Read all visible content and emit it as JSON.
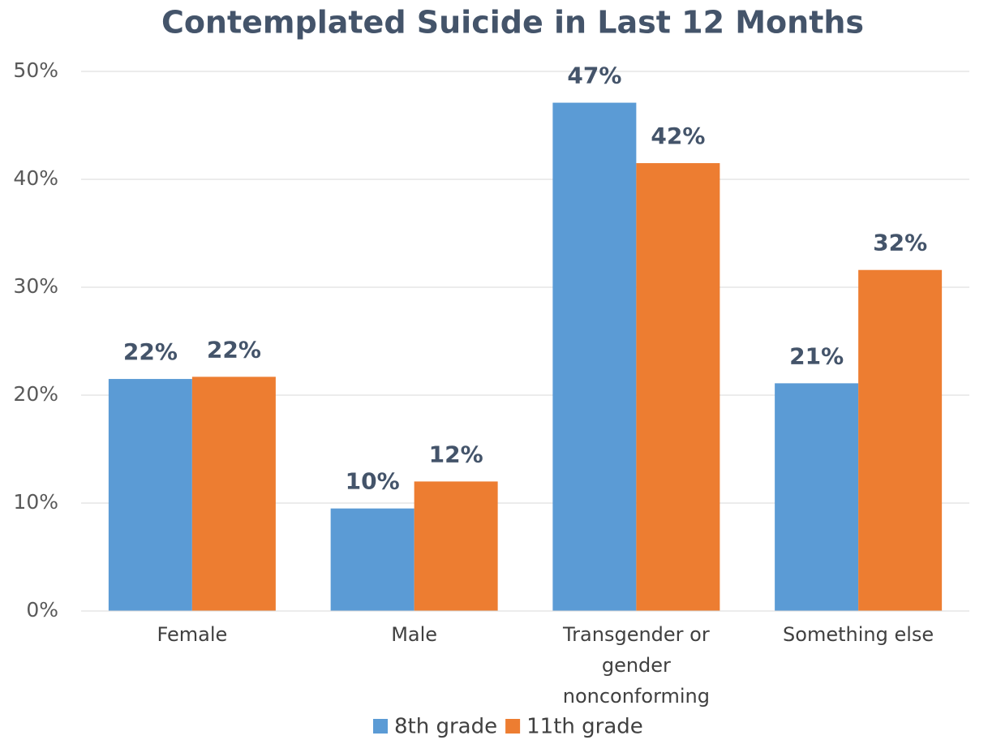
{
  "chart_data": {
    "type": "bar",
    "title": "Contemplated Suicide in Last 12 Months",
    "categories": [
      "Female",
      "Male",
      "Transgender or gender nonconforming",
      "Something else"
    ],
    "series": [
      {
        "name": "8th grade",
        "color": "#5b9bd5",
        "values": [
          21.5,
          9.5,
          47.1,
          21.1
        ],
        "value_labels": [
          "22%",
          "10%",
          "47%",
          "21%"
        ]
      },
      {
        "name": "11th grade",
        "color": "#ed7d31",
        "values": [
          21.7,
          12.0,
          41.5,
          31.6
        ],
        "value_labels": [
          "22%",
          "12%",
          "42%",
          "32%"
        ]
      }
    ],
    "ylim": [
      0,
      50
    ],
    "yticks": [
      {
        "value": 0,
        "label": "0%"
      },
      {
        "value": 10,
        "label": "10%"
      },
      {
        "value": 20,
        "label": "20%"
      },
      {
        "value": 30,
        "label": "30%"
      },
      {
        "value": 40,
        "label": "40%"
      },
      {
        "value": 50,
        "label": "50%"
      }
    ],
    "grid": true,
    "legend": "bottom"
  }
}
